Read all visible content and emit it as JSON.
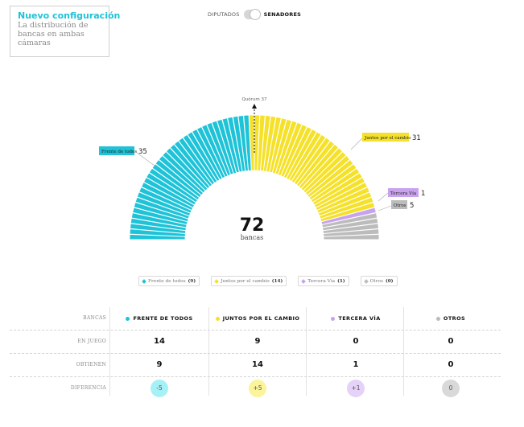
{
  "header": {
    "title": "Nuevo configuración",
    "subtitle": "La distribución de bancas en ambas cámaras"
  },
  "toggle": {
    "left_label": "DIPUTADOS",
    "right_label": "SENADORES",
    "selected": "SENADORES"
  },
  "chart_data": {
    "type": "hemicycle",
    "total": 72,
    "total_label": "bancas",
    "quorum_label": "Quórum 37",
    "series": [
      {
        "name": "Frente de todos",
        "seats": 35,
        "color": "#1ec3d8"
      },
      {
        "name": "Juntos por el cambio",
        "seats": 31,
        "color": "#f5e12a"
      },
      {
        "name": "Tercera Vía",
        "seats": 1,
        "color": "#c9a2ee"
      },
      {
        "name": "Otros",
        "seats": 5,
        "color": "#bcbcbc"
      }
    ]
  },
  "legend": [
    {
      "label": "Frente de todos",
      "count": "(9)",
      "color": "#1ec3d8"
    },
    {
      "label": "Juntos por el cambio",
      "count": "(14)",
      "color": "#f5e12a"
    },
    {
      "label": "Tercera Vía",
      "count": "(1)",
      "color": "#c9a2ee"
    },
    {
      "label": "Otros",
      "count": "(0)",
      "color": "#bcbcbc"
    }
  ],
  "table": {
    "header_label": "BANCAS",
    "columns": [
      {
        "label": "FRENTE DE TODOS",
        "color": "#1ec3d8"
      },
      {
        "label": "JUNTOS POR EL CAMBIO",
        "color": "#f5e12a"
      },
      {
        "label": "TERCERA VÍA",
        "color": "#c9a2ee"
      },
      {
        "label": "OTROS",
        "color": "#bcbcbc"
      }
    ],
    "rows": [
      {
        "label": "EN JUEGO",
        "values": [
          "14",
          "9",
          "0",
          "0"
        ]
      },
      {
        "label": "OBTIENEN",
        "values": [
          "9",
          "14",
          "1",
          "0"
        ]
      }
    ],
    "diff_row": {
      "label": "DIFERENCIA",
      "values": [
        "-5",
        "+5",
        "+1",
        "0"
      ],
      "colors": [
        "#a6f1f6",
        "#fbf49a",
        "#e6d2f8",
        "#d9d9d9"
      ]
    }
  }
}
